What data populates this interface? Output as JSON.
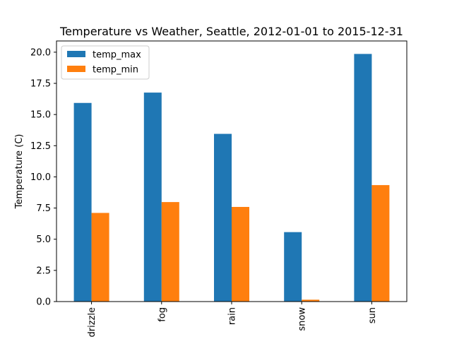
{
  "chart_data": {
    "type": "bar",
    "title": "Temperature vs Weather, Seattle, 2012-01-01 to 2015-12-31",
    "xlabel": "",
    "ylabel": "Temperature (C)",
    "categories": [
      "drizzle",
      "fog",
      "rain",
      "snow",
      "sun"
    ],
    "series": [
      {
        "name": "temp_max",
        "color": "#1f77b4",
        "values": [
          15.93,
          16.76,
          13.45,
          5.57,
          19.86
        ]
      },
      {
        "name": "temp_min",
        "color": "#ff7f0e",
        "values": [
          7.11,
          7.98,
          7.59,
          0.15,
          9.34
        ]
      }
    ],
    "ylim": [
      0,
      20.9
    ],
    "yticks": [
      0.0,
      2.5,
      5.0,
      7.5,
      10.0,
      12.5,
      15.0,
      17.5,
      20.0
    ],
    "ytick_labels": [
      "0.0",
      "2.5",
      "5.0",
      "7.5",
      "10.0",
      "12.5",
      "15.0",
      "17.5",
      "20.0"
    ],
    "grid": false,
    "legend_position": "top-left"
  }
}
